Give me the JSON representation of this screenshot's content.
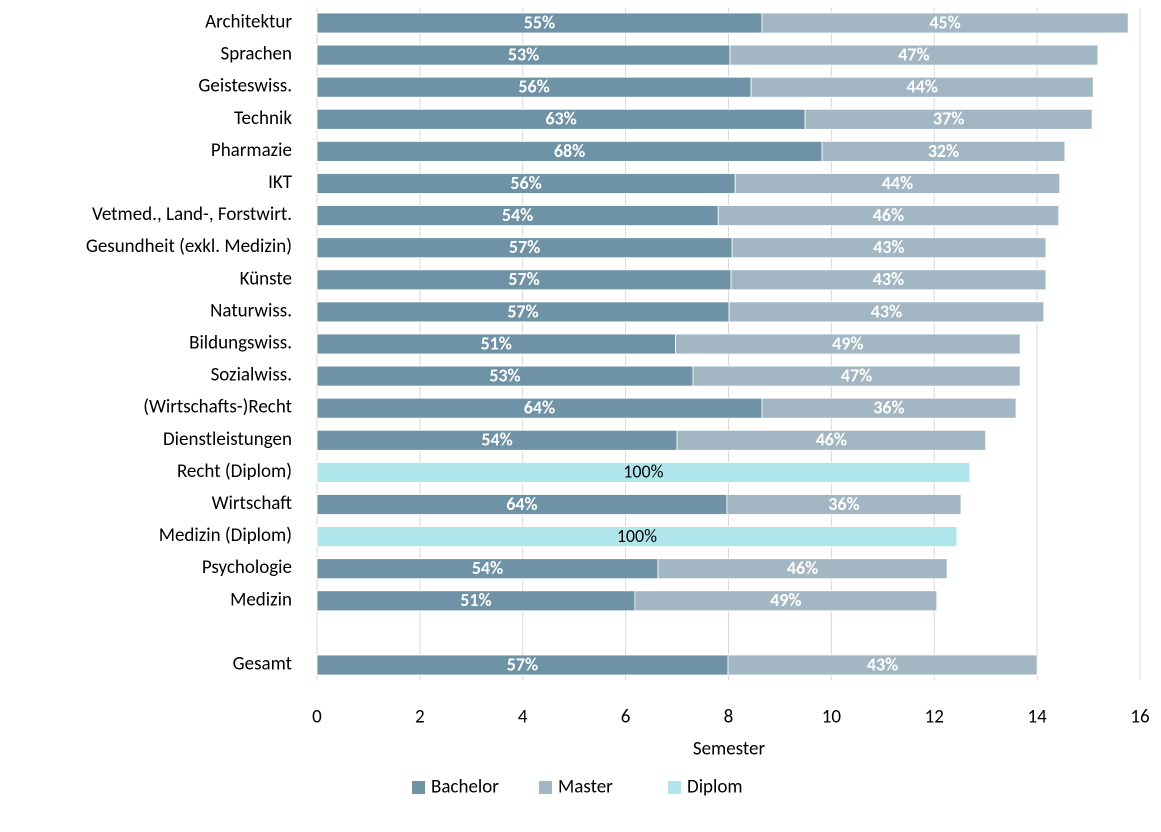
{
  "chart_data": {
    "type": "stacked-barh",
    "xlabel": "Semester",
    "categories": [
      "Architektur",
      "Sprachen",
      "Geisteswiss.",
      "Technik",
      "Pharmazie",
      "IKT",
      "Vetmed., Land-, Forstwirt.",
      "Gesundheit (exkl. Medizin)",
      "Künste",
      "Naturwiss.",
      "Bildungswiss.",
      "Sozialwiss.",
      "(Wirtschafts-)Recht",
      "Dienstleistungen",
      "Recht (Diplom)",
      "Wirtschaft",
      "Medizin (Diplom)",
      "Psychologie",
      "Medizin",
      null,
      "Gesamt"
    ],
    "series": [
      {
        "name": "Bachelor",
        "color": "#6f93a6",
        "values": [
          8.65,
          8.03,
          8.44,
          9.49,
          9.82,
          8.13,
          7.8,
          8.07,
          8.05,
          8.01,
          6.97,
          7.31,
          8.65,
          7.0,
          null,
          7.97,
          null,
          6.63,
          6.18,
          null,
          7.99
        ],
        "labels": [
          "55%",
          "53%",
          "56%",
          "63%",
          "68%",
          "56%",
          "54%",
          "57%",
          "57%",
          "57%",
          "51%",
          "53%",
          "64%",
          "54%",
          null,
          "64%",
          null,
          "54%",
          "51%",
          null,
          "57%"
        ]
      },
      {
        "name": "Master",
        "color": "#a2b7c3",
        "values": [
          7.12,
          7.15,
          6.65,
          5.58,
          4.72,
          6.31,
          6.62,
          6.1,
          6.12,
          6.12,
          6.7,
          6.36,
          4.94,
          6.0,
          null,
          4.55,
          null,
          5.62,
          5.87,
          null,
          6.01
        ],
        "labels": [
          "45%",
          "47%",
          "44%",
          "37%",
          "32%",
          "44%",
          "46%",
          "43%",
          "43%",
          "43%",
          "49%",
          "47%",
          "36%",
          "46%",
          null,
          "36%",
          null,
          "46%",
          "49%",
          null,
          "43%"
        ]
      },
      {
        "name": "Diplom",
        "color": "#aee6ec",
        "values": [
          null,
          null,
          null,
          null,
          null,
          null,
          null,
          null,
          null,
          null,
          null,
          null,
          null,
          null,
          12.69,
          null,
          12.44,
          null,
          null,
          null,
          null
        ],
        "labels": [
          null,
          null,
          null,
          null,
          null,
          null,
          null,
          null,
          null,
          null,
          null,
          null,
          null,
          null,
          "100%",
          null,
          "100%",
          null,
          null,
          null,
          null
        ]
      }
    ],
    "xlim": [
      0,
      16
    ],
    "xticks": [
      0,
      2,
      4,
      6,
      8,
      10,
      12,
      14,
      16
    ],
    "grid": true,
    "legend": "bottom"
  }
}
